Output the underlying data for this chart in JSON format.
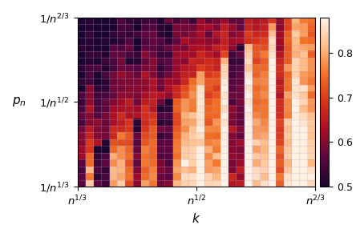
{
  "xlabel": "$k$",
  "ylabel_label": "$p_n$",
  "colormap": "RdPu_r",
  "vmin": 0.5,
  "vmax": 0.88,
  "grid_color": "#bb99cc",
  "grid_alpha": 0.5,
  "figsize": [
    4.54,
    2.96
  ],
  "dpi": 100,
  "n_cols": 30,
  "n_rows": 25,
  "xtick_positions": [
    0.0,
    0.5,
    1.0
  ],
  "xtick_labels": [
    "$n^{1/3}$",
    "$n^{1/2}$",
    "$n^{2/3}$"
  ],
  "ytick_positions": [
    0.0,
    0.5,
    1.0
  ],
  "ytick_labels": [
    "$1/n^{1/3}$",
    "$1/n^{1/2}$",
    "$1/n^{2/3}$"
  ],
  "colorbar_ticks": [
    0.5,
    0.6,
    0.7,
    0.8
  ]
}
